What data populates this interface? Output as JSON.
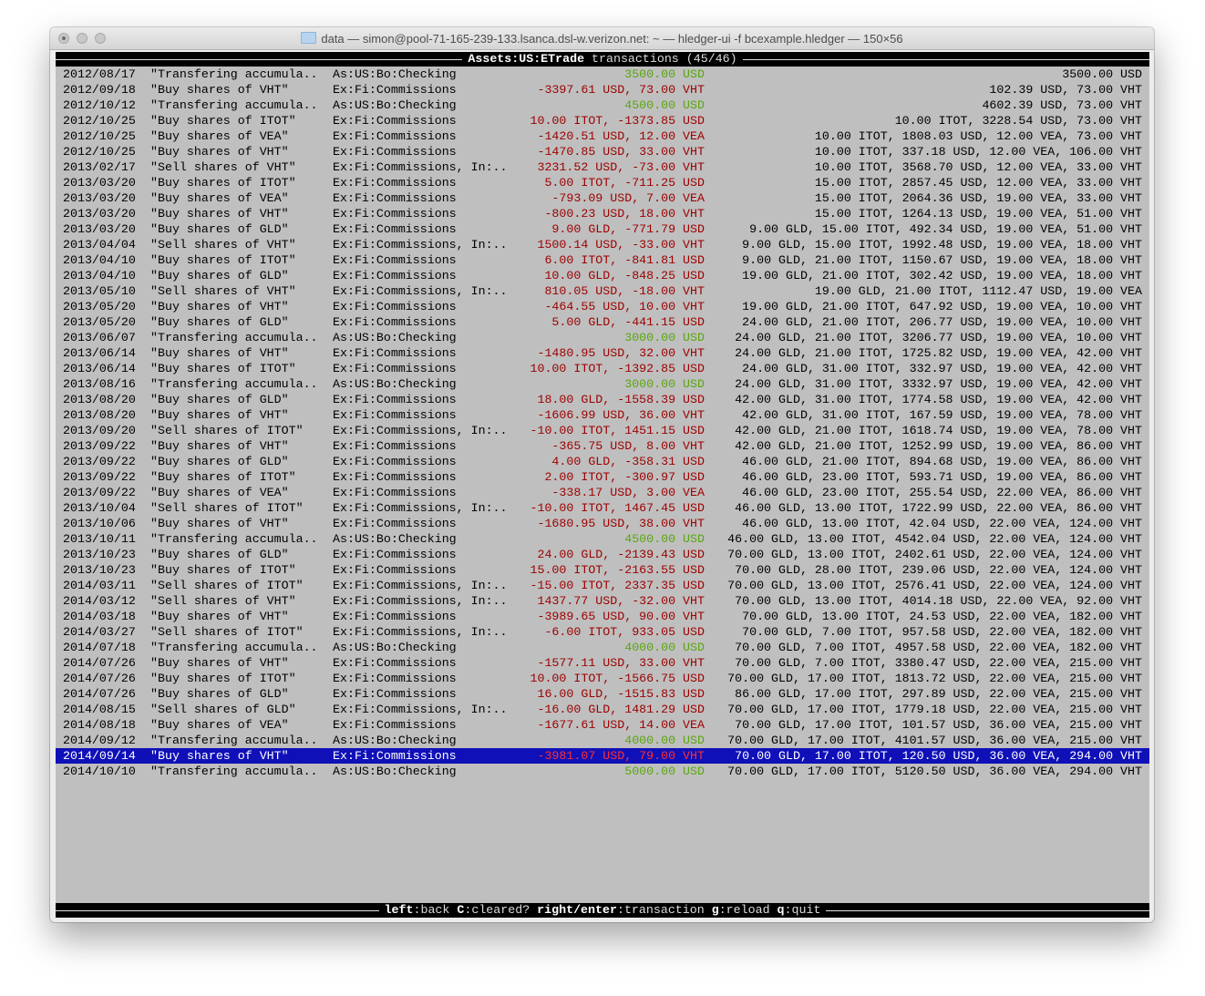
{
  "window": {
    "title": "data — simon@pool-71-165-239-133.lsanca.dsl-w.verizon.net: ~ — hledger-ui -f bcexample.hledger — 150×56",
    "folder_icon": "folder-icon"
  },
  "header": {
    "account": "Assets:US:ETrade",
    "suffix": " transactions (45/46)"
  },
  "footer": {
    "keys": [
      {
        "key": "left",
        "action": "back"
      },
      {
        "key": "C",
        "action": "cleared?"
      },
      {
        "key": "right/enter",
        "action": "transaction"
      },
      {
        "key": "g",
        "action": "reload"
      },
      {
        "key": "q",
        "action": "quit"
      }
    ]
  },
  "colors": {
    "negative": "#9c0000",
    "positive": "#5aa60f",
    "selection": "#1010b8",
    "background": "#bfbfbf"
  },
  "selected_index": 44,
  "rows": [
    {
      "date": "2012/08/17",
      "desc": "\"Transfering accumula..",
      "acct": "As:US:Bo:Checking",
      "amt": "3500.00 USD",
      "pos": true,
      "bal": "3500.00 USD"
    },
    {
      "date": "2012/09/18",
      "desc": "\"Buy shares of VHT\"",
      "acct": "Ex:Fi:Commissions",
      "amt": "-3397.61 USD, 73.00 VHT",
      "bal": "102.39 USD, 73.00 VHT"
    },
    {
      "date": "2012/10/12",
      "desc": "\"Transfering accumula..",
      "acct": "As:US:Bo:Checking",
      "amt": "4500.00 USD",
      "pos": true,
      "bal": "4602.39 USD, 73.00 VHT"
    },
    {
      "date": "2012/10/25",
      "desc": "\"Buy shares of ITOT\"",
      "acct": "Ex:Fi:Commissions",
      "amt": "10.00 ITOT, -1373.85 USD",
      "bal": "10.00 ITOT, 3228.54 USD, 73.00 VHT"
    },
    {
      "date": "2012/10/25",
      "desc": "\"Buy shares of VEA\"",
      "acct": "Ex:Fi:Commissions",
      "amt": "-1420.51 USD, 12.00 VEA",
      "bal": "10.00 ITOT, 1808.03 USD, 12.00 VEA, 73.00 VHT"
    },
    {
      "date": "2012/10/25",
      "desc": "\"Buy shares of VHT\"",
      "acct": "Ex:Fi:Commissions",
      "amt": "-1470.85 USD, 33.00 VHT",
      "bal": "10.00 ITOT, 337.18 USD, 12.00 VEA, 106.00 VHT"
    },
    {
      "date": "2013/02/17",
      "desc": "\"Sell shares of VHT\"",
      "acct": "Ex:Fi:Commissions, In:..",
      "amt": "3231.52 USD, -73.00 VHT",
      "bal": "10.00 ITOT, 3568.70 USD, 12.00 VEA, 33.00 VHT"
    },
    {
      "date": "2013/03/20",
      "desc": "\"Buy shares of ITOT\"",
      "acct": "Ex:Fi:Commissions",
      "amt": "5.00 ITOT, -711.25 USD",
      "bal": "15.00 ITOT, 2857.45 USD, 12.00 VEA, 33.00 VHT"
    },
    {
      "date": "2013/03/20",
      "desc": "\"Buy shares of VEA\"",
      "acct": "Ex:Fi:Commissions",
      "amt": "-793.09 USD, 7.00 VEA",
      "bal": "15.00 ITOT, 2064.36 USD, 19.00 VEA, 33.00 VHT"
    },
    {
      "date": "2013/03/20",
      "desc": "\"Buy shares of VHT\"",
      "acct": "Ex:Fi:Commissions",
      "amt": "-800.23 USD, 18.00 VHT",
      "bal": "15.00 ITOT, 1264.13 USD, 19.00 VEA, 51.00 VHT"
    },
    {
      "date": "2013/03/20",
      "desc": "\"Buy shares of GLD\"",
      "acct": "Ex:Fi:Commissions",
      "amt": "9.00 GLD, -771.79 USD",
      "bal": "9.00 GLD, 15.00 ITOT, 492.34 USD, 19.00 VEA, 51.00 VHT"
    },
    {
      "date": "2013/04/04",
      "desc": "\"Sell shares of VHT\"",
      "acct": "Ex:Fi:Commissions, In:..",
      "amt": "1500.14 USD, -33.00 VHT",
      "bal": "9.00 GLD, 15.00 ITOT, 1992.48 USD, 19.00 VEA, 18.00 VHT"
    },
    {
      "date": "2013/04/10",
      "desc": "\"Buy shares of ITOT\"",
      "acct": "Ex:Fi:Commissions",
      "amt": "6.00 ITOT, -841.81 USD",
      "bal": "9.00 GLD, 21.00 ITOT, 1150.67 USD, 19.00 VEA, 18.00 VHT"
    },
    {
      "date": "2013/04/10",
      "desc": "\"Buy shares of GLD\"",
      "acct": "Ex:Fi:Commissions",
      "amt": "10.00 GLD, -848.25 USD",
      "bal": "19.00 GLD, 21.00 ITOT, 302.42 USD, 19.00 VEA, 18.00 VHT"
    },
    {
      "date": "2013/05/10",
      "desc": "\"Sell shares of VHT\"",
      "acct": "Ex:Fi:Commissions, In:..",
      "amt": "810.05 USD, -18.00 VHT",
      "bal": "19.00 GLD, 21.00 ITOT, 1112.47 USD, 19.00 VEA"
    },
    {
      "date": "2013/05/20",
      "desc": "\"Buy shares of VHT\"",
      "acct": "Ex:Fi:Commissions",
      "amt": "-464.55 USD, 10.00 VHT",
      "bal": "19.00 GLD, 21.00 ITOT, 647.92 USD, 19.00 VEA, 10.00 VHT"
    },
    {
      "date": "2013/05/20",
      "desc": "\"Buy shares of GLD\"",
      "acct": "Ex:Fi:Commissions",
      "amt": "5.00 GLD, -441.15 USD",
      "bal": "24.00 GLD, 21.00 ITOT, 206.77 USD, 19.00 VEA, 10.00 VHT"
    },
    {
      "date": "2013/06/07",
      "desc": "\"Transfering accumula..",
      "acct": "As:US:Bo:Checking",
      "amt": "3000.00 USD",
      "pos": true,
      "bal": "24.00 GLD, 21.00 ITOT, 3206.77 USD, 19.00 VEA, 10.00 VHT"
    },
    {
      "date": "2013/06/14",
      "desc": "\"Buy shares of VHT\"",
      "acct": "Ex:Fi:Commissions",
      "amt": "-1480.95 USD, 32.00 VHT",
      "bal": "24.00 GLD, 21.00 ITOT, 1725.82 USD, 19.00 VEA, 42.00 VHT"
    },
    {
      "date": "2013/06/14",
      "desc": "\"Buy shares of ITOT\"",
      "acct": "Ex:Fi:Commissions",
      "amt": "10.00 ITOT, -1392.85 USD",
      "bal": "24.00 GLD, 31.00 ITOT, 332.97 USD, 19.00 VEA, 42.00 VHT"
    },
    {
      "date": "2013/08/16",
      "desc": "\"Transfering accumula..",
      "acct": "As:US:Bo:Checking",
      "amt": "3000.00 USD",
      "pos": true,
      "bal": "24.00 GLD, 31.00 ITOT, 3332.97 USD, 19.00 VEA, 42.00 VHT"
    },
    {
      "date": "2013/08/20",
      "desc": "\"Buy shares of GLD\"",
      "acct": "Ex:Fi:Commissions",
      "amt": "18.00 GLD, -1558.39 USD",
      "bal": "42.00 GLD, 31.00 ITOT, 1774.58 USD, 19.00 VEA, 42.00 VHT"
    },
    {
      "date": "2013/08/20",
      "desc": "\"Buy shares of VHT\"",
      "acct": "Ex:Fi:Commissions",
      "amt": "-1606.99 USD, 36.00 VHT",
      "bal": "42.00 GLD, 31.00 ITOT, 167.59 USD, 19.00 VEA, 78.00 VHT"
    },
    {
      "date": "2013/09/20",
      "desc": "\"Sell shares of ITOT\"",
      "acct": "Ex:Fi:Commissions, In:..",
      "amt": "-10.00 ITOT, 1451.15 USD",
      "bal": "42.00 GLD, 21.00 ITOT, 1618.74 USD, 19.00 VEA, 78.00 VHT"
    },
    {
      "date": "2013/09/22",
      "desc": "\"Buy shares of VHT\"",
      "acct": "Ex:Fi:Commissions",
      "amt": "-365.75 USD, 8.00 VHT",
      "bal": "42.00 GLD, 21.00 ITOT, 1252.99 USD, 19.00 VEA, 86.00 VHT"
    },
    {
      "date": "2013/09/22",
      "desc": "\"Buy shares of GLD\"",
      "acct": "Ex:Fi:Commissions",
      "amt": "4.00 GLD, -358.31 USD",
      "bal": "46.00 GLD, 21.00 ITOT, 894.68 USD, 19.00 VEA, 86.00 VHT"
    },
    {
      "date": "2013/09/22",
      "desc": "\"Buy shares of ITOT\"",
      "acct": "Ex:Fi:Commissions",
      "amt": "2.00 ITOT, -300.97 USD",
      "bal": "46.00 GLD, 23.00 ITOT, 593.71 USD, 19.00 VEA, 86.00 VHT"
    },
    {
      "date": "2013/09/22",
      "desc": "\"Buy shares of VEA\"",
      "acct": "Ex:Fi:Commissions",
      "amt": "-338.17 USD, 3.00 VEA",
      "bal": "46.00 GLD, 23.00 ITOT, 255.54 USD, 22.00 VEA, 86.00 VHT"
    },
    {
      "date": "2013/10/04",
      "desc": "\"Sell shares of ITOT\"",
      "acct": "Ex:Fi:Commissions, In:..",
      "amt": "-10.00 ITOT, 1467.45 USD",
      "bal": "46.00 GLD, 13.00 ITOT, 1722.99 USD, 22.00 VEA, 86.00 VHT"
    },
    {
      "date": "2013/10/06",
      "desc": "\"Buy shares of VHT\"",
      "acct": "Ex:Fi:Commissions",
      "amt": "-1680.95 USD, 38.00 VHT",
      "bal": "46.00 GLD, 13.00 ITOT, 42.04 USD, 22.00 VEA, 124.00 VHT"
    },
    {
      "date": "2013/10/11",
      "desc": "\"Transfering accumula..",
      "acct": "As:US:Bo:Checking",
      "amt": "4500.00 USD",
      "pos": true,
      "bal": "46.00 GLD, 13.00 ITOT, 4542.04 USD, 22.00 VEA, 124.00 VHT"
    },
    {
      "date": "2013/10/23",
      "desc": "\"Buy shares of GLD\"",
      "acct": "Ex:Fi:Commissions",
      "amt": "24.00 GLD, -2139.43 USD",
      "bal": "70.00 GLD, 13.00 ITOT, 2402.61 USD, 22.00 VEA, 124.00 VHT"
    },
    {
      "date": "2013/10/23",
      "desc": "\"Buy shares of ITOT\"",
      "acct": "Ex:Fi:Commissions",
      "amt": "15.00 ITOT, -2163.55 USD",
      "bal": "70.00 GLD, 28.00 ITOT, 239.06 USD, 22.00 VEA, 124.00 VHT"
    },
    {
      "date": "2014/03/11",
      "desc": "\"Sell shares of ITOT\"",
      "acct": "Ex:Fi:Commissions, In:..",
      "amt": "-15.00 ITOT, 2337.35 USD",
      "bal": "70.00 GLD, 13.00 ITOT, 2576.41 USD, 22.00 VEA, 124.00 VHT"
    },
    {
      "date": "2014/03/12",
      "desc": "\"Sell shares of VHT\"",
      "acct": "Ex:Fi:Commissions, In:..",
      "amt": "1437.77 USD, -32.00 VHT",
      "bal": "70.00 GLD, 13.00 ITOT, 4014.18 USD, 22.00 VEA, 92.00 VHT"
    },
    {
      "date": "2014/03/18",
      "desc": "\"Buy shares of VHT\"",
      "acct": "Ex:Fi:Commissions",
      "amt": "-3989.65 USD, 90.00 VHT",
      "bal": "70.00 GLD, 13.00 ITOT, 24.53 USD, 22.00 VEA, 182.00 VHT"
    },
    {
      "date": "2014/03/27",
      "desc": "\"Sell shares of ITOT\"",
      "acct": "Ex:Fi:Commissions, In:..",
      "amt": "-6.00 ITOT, 933.05 USD",
      "bal": "70.00 GLD, 7.00 ITOT, 957.58 USD, 22.00 VEA, 182.00 VHT"
    },
    {
      "date": "2014/07/18",
      "desc": "\"Transfering accumula..",
      "acct": "As:US:Bo:Checking",
      "amt": "4000.00 USD",
      "pos": true,
      "bal": "70.00 GLD, 7.00 ITOT, 4957.58 USD, 22.00 VEA, 182.00 VHT"
    },
    {
      "date": "2014/07/26",
      "desc": "\"Buy shares of VHT\"",
      "acct": "Ex:Fi:Commissions",
      "amt": "-1577.11 USD, 33.00 VHT",
      "bal": "70.00 GLD, 7.00 ITOT, 3380.47 USD, 22.00 VEA, 215.00 VHT"
    },
    {
      "date": "2014/07/26",
      "desc": "\"Buy shares of ITOT\"",
      "acct": "Ex:Fi:Commissions",
      "amt": "10.00 ITOT, -1566.75 USD",
      "bal": "70.00 GLD, 17.00 ITOT, 1813.72 USD, 22.00 VEA, 215.00 VHT"
    },
    {
      "date": "2014/07/26",
      "desc": "\"Buy shares of GLD\"",
      "acct": "Ex:Fi:Commissions",
      "amt": "16.00 GLD, -1515.83 USD",
      "bal": "86.00 GLD, 17.00 ITOT, 297.89 USD, 22.00 VEA, 215.00 VHT"
    },
    {
      "date": "2014/08/15",
      "desc": "\"Sell shares of GLD\"",
      "acct": "Ex:Fi:Commissions, In:..",
      "amt": "-16.00 GLD, 1481.29 USD",
      "bal": "70.00 GLD, 17.00 ITOT, 1779.18 USD, 22.00 VEA, 215.00 VHT"
    },
    {
      "date": "2014/08/18",
      "desc": "\"Buy shares of VEA\"",
      "acct": "Ex:Fi:Commissions",
      "amt": "-1677.61 USD, 14.00 VEA",
      "bal": "70.00 GLD, 17.00 ITOT, 101.57 USD, 36.00 VEA, 215.00 VHT"
    },
    {
      "date": "2014/09/12",
      "desc": "\"Transfering accumula..",
      "acct": "As:US:Bo:Checking",
      "amt": "4000.00 USD",
      "pos": true,
      "bal": "70.00 GLD, 17.00 ITOT, 4101.57 USD, 36.00 VEA, 215.00 VHT"
    },
    {
      "date": "2014/09/14",
      "desc": "\"Buy shares of VHT\"",
      "acct": "Ex:Fi:Commissions",
      "amt": "-3981.07 USD, 79.00 VHT",
      "bal": "70.00 GLD, 17.00 ITOT, 120.50 USD, 36.00 VEA, 294.00 VHT"
    },
    {
      "date": "2014/10/10",
      "desc": "\"Transfering accumula..",
      "acct": "As:US:Bo:Checking",
      "amt": "5000.00 USD",
      "pos": true,
      "bal": "70.00 GLD, 17.00 ITOT, 5120.50 USD, 36.00 VEA, 294.00 VHT"
    }
  ]
}
